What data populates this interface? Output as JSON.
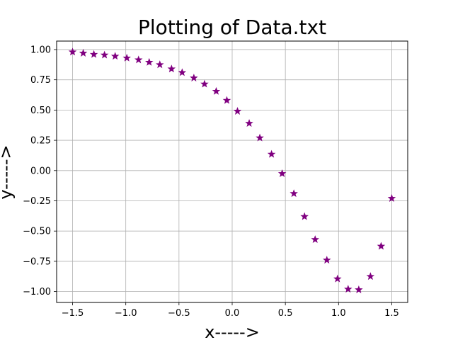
{
  "chart_data": {
    "type": "scatter",
    "title": "Plotting of Data.txt",
    "xlabel": "x----->",
    "ylabel": "y----->",
    "xlim": [
      -1.65,
      1.65
    ],
    "ylim": [
      -1.09,
      1.07
    ],
    "xticks": [
      -1.5,
      -1.0,
      -0.5,
      0.0,
      0.5,
      1.0,
      1.5
    ],
    "xtick_labels": [
      "−1.5",
      "−1.0",
      "−0.5",
      "0.0",
      "0.5",
      "1.0",
      "1.5"
    ],
    "yticks": [
      1.0,
      0.75,
      0.5,
      0.25,
      0.0,
      -0.25,
      -0.5,
      -0.75,
      -1.0
    ],
    "ytick_labels": [
      "1.00",
      "0.75",
      "0.50",
      "0.25",
      "0.00",
      "−0.25",
      "−0.50",
      "−0.75",
      "−1.00"
    ],
    "grid": true,
    "marker": "star",
    "marker_color": "#800080",
    "x": [
      -1.5,
      -1.4,
      -1.3,
      -1.2,
      -1.1,
      -0.99,
      -0.88,
      -0.78,
      -0.68,
      -0.57,
      -0.47,
      -0.36,
      -0.26,
      -0.15,
      -0.05,
      0.05,
      0.16,
      0.26,
      0.37,
      0.47,
      0.58,
      0.68,
      0.78,
      0.89,
      0.99,
      1.09,
      1.19,
      1.3,
      1.4,
      1.5
    ],
    "y": [
      0.98,
      0.97,
      0.96,
      0.955,
      0.945,
      0.93,
      0.915,
      0.895,
      0.875,
      0.84,
      0.81,
      0.765,
      0.715,
      0.655,
      0.58,
      0.49,
      0.39,
      0.27,
      0.135,
      -0.025,
      -0.19,
      -0.38,
      -0.57,
      -0.74,
      -0.895,
      -0.98,
      -0.985,
      -0.875,
      -0.625,
      -0.23
    ]
  }
}
